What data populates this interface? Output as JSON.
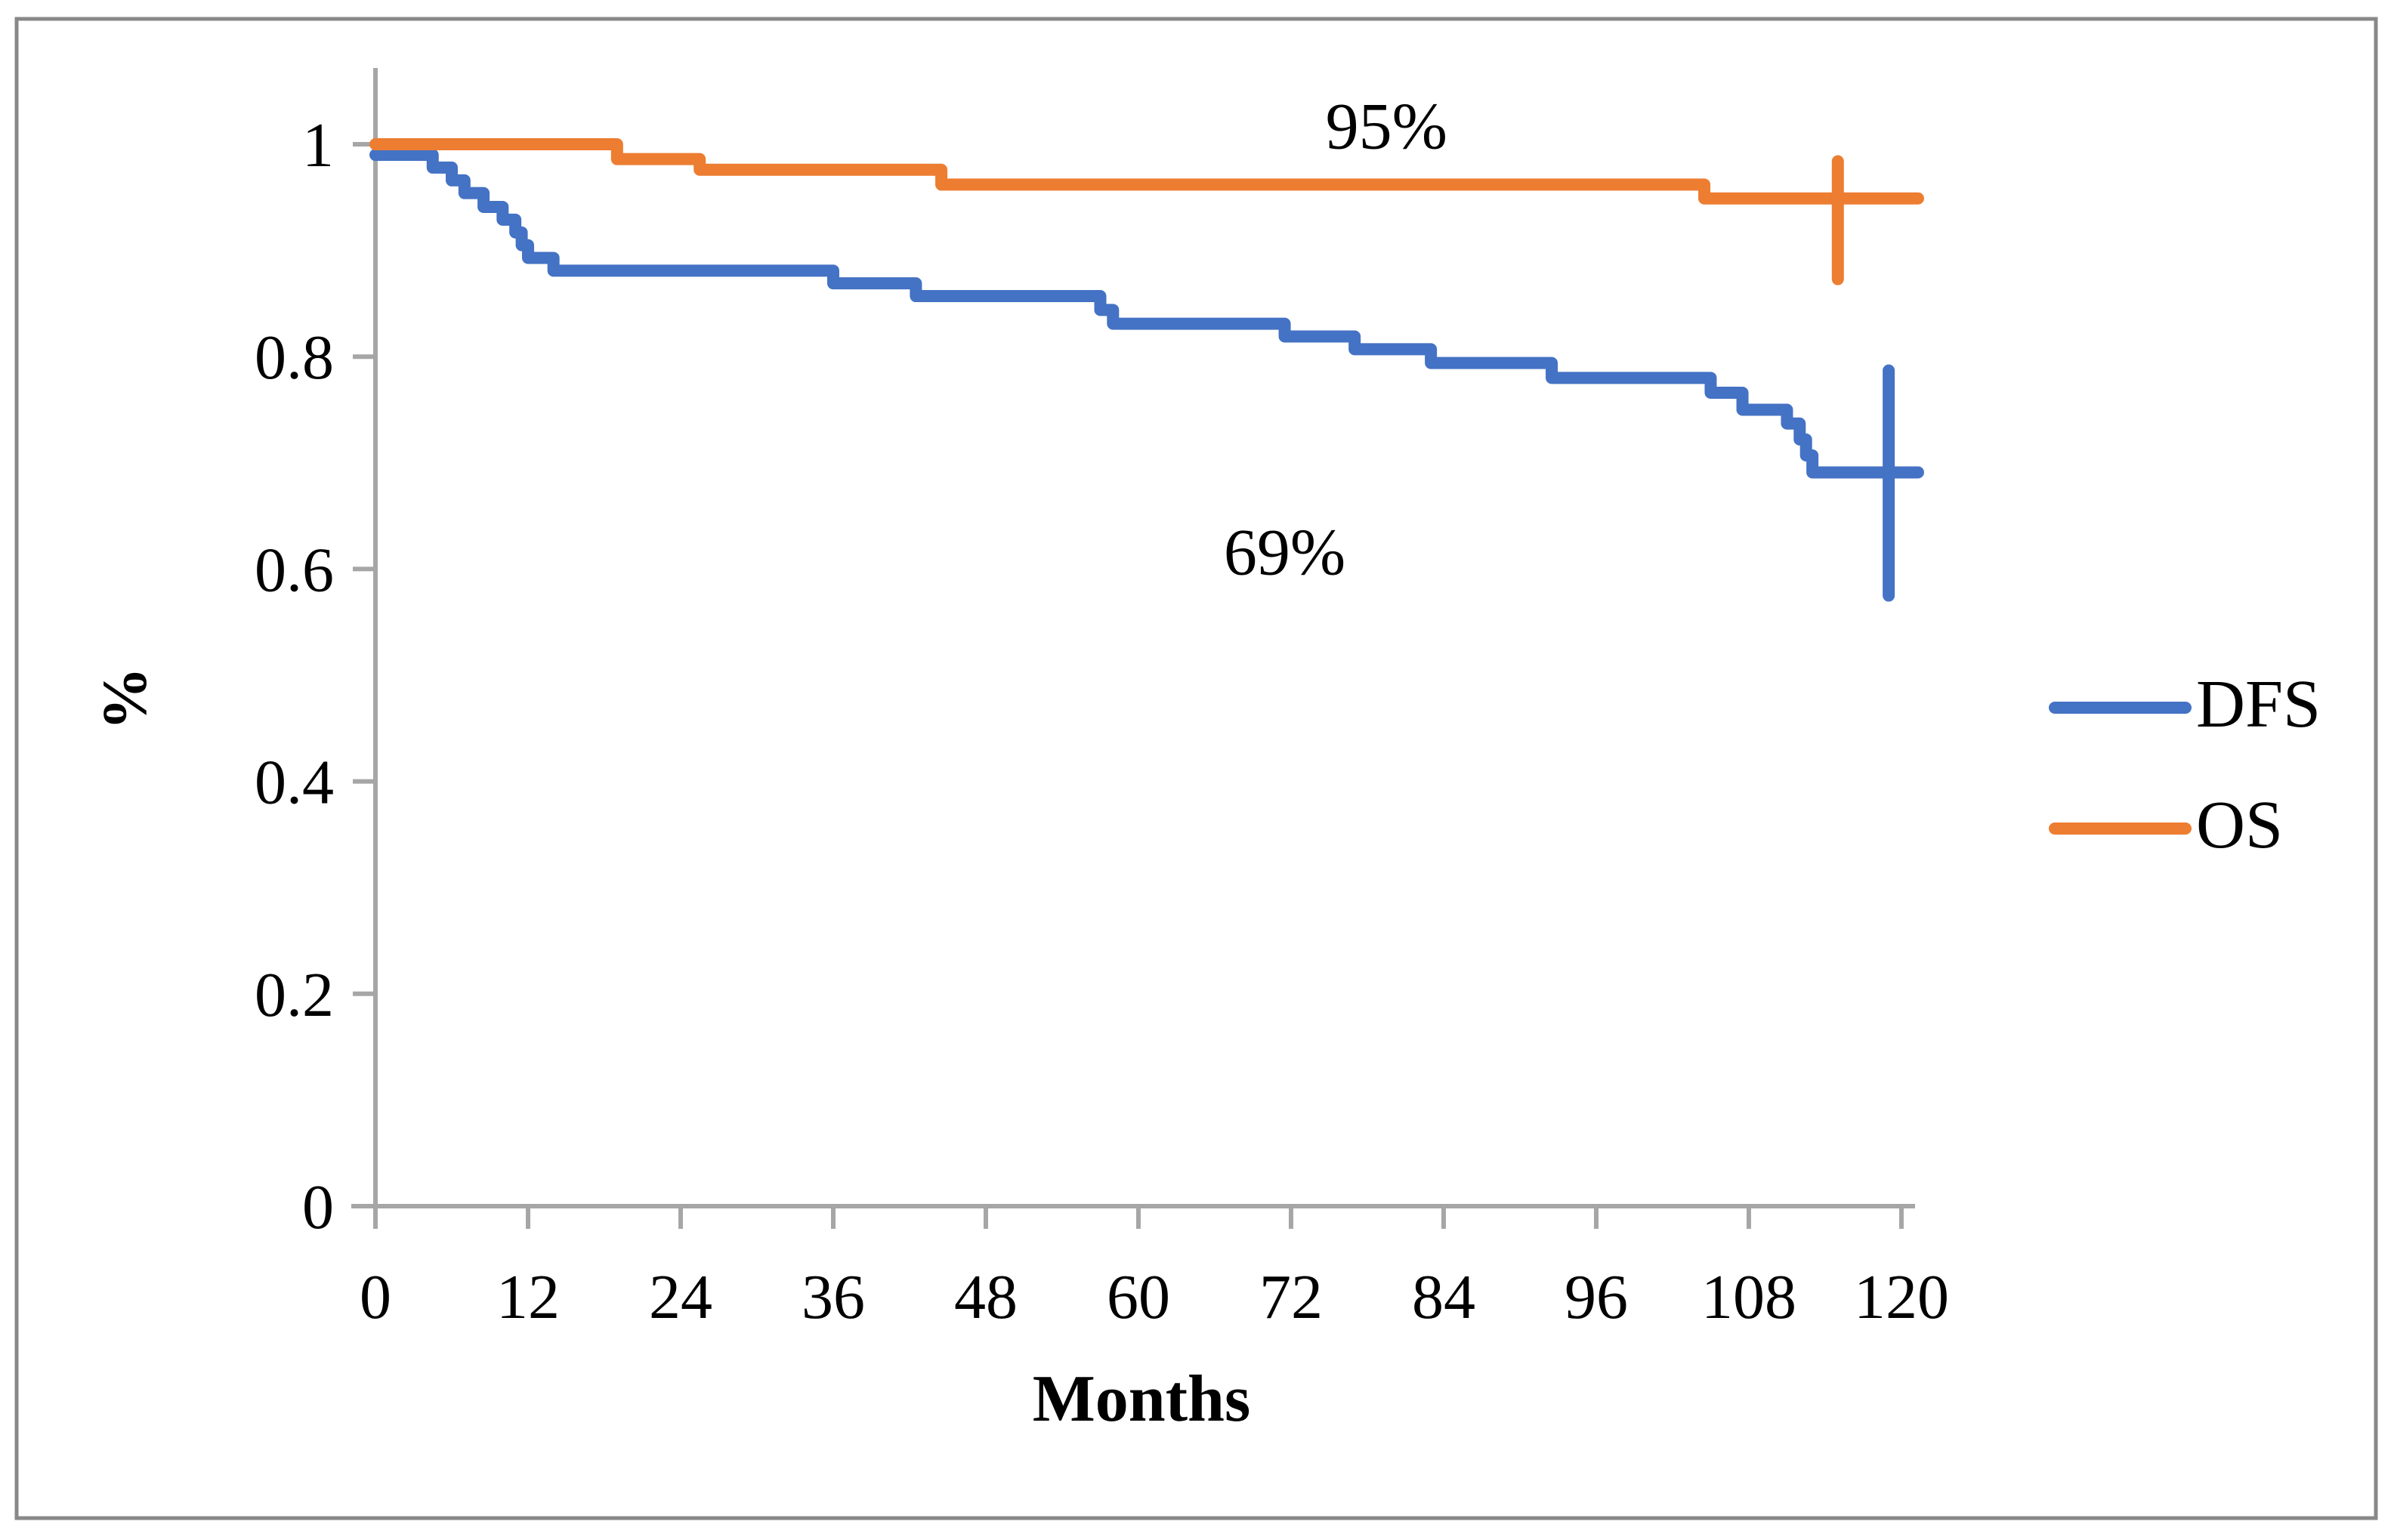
{
  "figure": {
    "background": "#ffffff",
    "border_color": "#888888",
    "axis_color": "#a6a6a6",
    "text_color": "#000000"
  },
  "axes": {
    "x_label": "Months",
    "y_label": "%"
  },
  "legend": {
    "position": "right",
    "items": [
      {
        "label": "DFS",
        "color": "#4472C4"
      },
      {
        "label": "OS",
        "color": "#ED7D31"
      }
    ]
  },
  "chart_data": {
    "type": "line",
    "subtype": "kaplan-meier-step-curves",
    "title": "",
    "xlabel": "Months",
    "ylabel": "%",
    "xlim": [
      0,
      120
    ],
    "ylim": [
      0,
      1
    ],
    "x_ticks": [
      0,
      12,
      24,
      36,
      48,
      60,
      72,
      84,
      96,
      108,
      120
    ],
    "y_ticks": [
      0,
      0.2,
      0.4,
      0.6,
      0.8,
      1
    ],
    "y_tick_labels": [
      "0",
      "0.2",
      "0.4",
      "0.6",
      "0.8",
      "1"
    ],
    "grid": false,
    "legend_position": "right",
    "series": [
      {
        "name": "DFS",
        "color": "#4472C4",
        "end_month": 120,
        "final_value": 0.69,
        "annotation": {
          "text": "69%",
          "x": 71.5,
          "y": 0.617
        },
        "censor_mark": {
          "month": 119,
          "lo": 0.575,
          "hi": 0.787
        },
        "steps": [
          [
            0,
            0.99
          ],
          [
            4.5,
            0.978
          ],
          [
            6,
            0.966
          ],
          [
            7,
            0.954
          ],
          [
            8.5,
            0.941
          ],
          [
            10,
            0.929
          ],
          [
            11,
            0.917
          ],
          [
            11.5,
            0.905
          ],
          [
            12,
            0.893
          ],
          [
            14,
            0.881
          ],
          [
            36,
            0.869
          ],
          [
            42.5,
            0.857
          ],
          [
            57,
            0.844
          ],
          [
            58,
            0.831
          ],
          [
            71.5,
            0.819
          ],
          [
            77,
            0.807
          ],
          [
            83,
            0.794
          ],
          [
            92.5,
            0.78
          ],
          [
            105,
            0.766
          ],
          [
            107.5,
            0.75
          ],
          [
            111,
            0.737
          ],
          [
            112,
            0.722
          ],
          [
            112.5,
            0.707
          ],
          [
            113,
            0.691
          ]
        ]
      },
      {
        "name": "OS",
        "color": "#ED7D31",
        "end_month": 120,
        "final_value": 0.95,
        "annotation": {
          "text": "95%",
          "x": 79.5,
          "y": 1.018
        },
        "censor_mark": {
          "month": 115,
          "lo": 0.873,
          "hi": 0.984
        },
        "steps": [
          [
            0,
            1.0
          ],
          [
            19,
            0.986
          ],
          [
            25.5,
            0.976
          ],
          [
            44.5,
            0.962
          ],
          [
            104.5,
            0.949
          ]
        ]
      }
    ]
  }
}
